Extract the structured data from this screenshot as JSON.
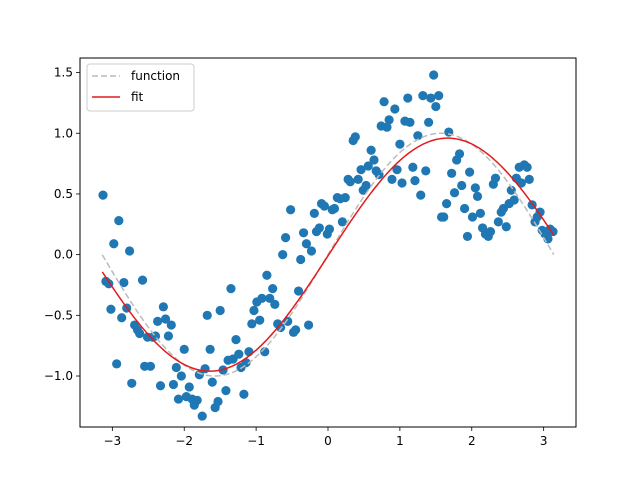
{
  "chart_data": {
    "type": "scatter",
    "xlim": [
      -3.45,
      3.45
    ],
    "ylim": [
      -1.42,
      1.62
    ],
    "x_ticks": [
      -3,
      -2,
      -1,
      0,
      1,
      2,
      3
    ],
    "y_ticks": [
      -1.0,
      -0.5,
      0.0,
      0.5,
      1.0,
      1.5
    ],
    "x_tick_labels": [
      "−3",
      "−2",
      "−1",
      "0",
      "1",
      "2",
      "3"
    ],
    "y_tick_labels": [
      "−1.0",
      "−0.5",
      "0.0",
      "0.5",
      "1.0",
      "1.5"
    ],
    "grid": false,
    "legend": {
      "placement": "top-left",
      "entries": [
        "function",
        "fit"
      ]
    },
    "colors": {
      "points": "#1f77b4",
      "function": "#bbbbbb",
      "fit": "#e41a1c"
    },
    "function": {
      "name": "function",
      "style": "dashed",
      "amplitude": 1.0,
      "frequency": 1.0,
      "phase": 0.0,
      "x_range": [
        -3.14,
        3.14
      ]
    },
    "fit": {
      "name": "fit",
      "style": "solid",
      "amplitude": 0.96,
      "frequency": 0.95,
      "phase": -0.01,
      "x_range": [
        -3.14,
        3.14
      ]
    },
    "points": [
      [
        -3.13,
        0.49
      ],
      [
        -3.09,
        -0.22
      ],
      [
        -3.05,
        -0.24
      ],
      [
        -3.02,
        -0.45
      ],
      [
        -2.98,
        0.09
      ],
      [
        -2.94,
        -0.9
      ],
      [
        -2.91,
        0.28
      ],
      [
        -2.87,
        -0.52
      ],
      [
        -2.84,
        -0.23
      ],
      [
        -2.8,
        -0.44
      ],
      [
        -2.76,
        0.03
      ],
      [
        -2.73,
        -1.06
      ],
      [
        -2.69,
        -0.58
      ],
      [
        -2.65,
        -0.62
      ],
      [
        -2.62,
        -0.65
      ],
      [
        -2.58,
        -0.21
      ],
      [
        -2.55,
        -0.92
      ],
      [
        -2.51,
        -0.68
      ],
      [
        -2.47,
        -0.92
      ],
      [
        -2.44,
        -0.68
      ],
      [
        -2.4,
        -0.67
      ],
      [
        -2.37,
        -0.55
      ],
      [
        -2.33,
        -1.08
      ],
      [
        -2.29,
        -0.43
      ],
      [
        -2.26,
        -0.53
      ],
      [
        -2.22,
        -0.67
      ],
      [
        -2.18,
        -0.58
      ],
      [
        -2.15,
        -1.07
      ],
      [
        -2.11,
        -0.93
      ],
      [
        -2.08,
        -1.19
      ],
      [
        -2.04,
        -1.0
      ],
      [
        -2.0,
        -0.78
      ],
      [
        -1.97,
        -1.17
      ],
      [
        -1.93,
        -1.09
      ],
      [
        -1.89,
        -1.19
      ],
      [
        -1.86,
        -1.24
      ],
      [
        -1.82,
        -1.2
      ],
      [
        -1.79,
        -0.99
      ],
      [
        -1.75,
        -1.33
      ],
      [
        -1.71,
        -0.94
      ],
      [
        -1.68,
        -0.5
      ],
      [
        -1.64,
        -0.78
      ],
      [
        -1.61,
        -1.05
      ],
      [
        -1.57,
        -1.26
      ],
      [
        -1.53,
        -1.21
      ],
      [
        -1.5,
        -0.46
      ],
      [
        -1.46,
        -0.95
      ],
      [
        -1.42,
        -1.12
      ],
      [
        -1.39,
        -0.87
      ],
      [
        -1.35,
        -0.28
      ],
      [
        -1.32,
        -0.86
      ],
      [
        -1.28,
        -0.7
      ],
      [
        -1.24,
        -0.82
      ],
      [
        -1.21,
        -0.93
      ],
      [
        -1.17,
        -1.15
      ],
      [
        -1.14,
        -0.89
      ],
      [
        -1.1,
        -0.8
      ],
      [
        -1.06,
        -0.57
      ],
      [
        -1.03,
        -0.46
      ],
      [
        -0.99,
        -0.39
      ],
      [
        -0.95,
        -0.54
      ],
      [
        -0.92,
        -0.36
      ],
      [
        -0.88,
        -0.8
      ],
      [
        -0.85,
        -0.17
      ],
      [
        -0.81,
        -0.36
      ],
      [
        -0.77,
        -0.28
      ],
      [
        -0.74,
        -0.41
      ],
      [
        -0.7,
        -0.57
      ],
      [
        -0.66,
        -0.6
      ],
      [
        -0.63,
        0.0
      ],
      [
        -0.59,
        0.14
      ],
      [
        -0.56,
        -0.55
      ],
      [
        -0.52,
        0.37
      ],
      [
        -0.48,
        -0.64
      ],
      [
        -0.45,
        -0.62
      ],
      [
        -0.41,
        -0.3
      ],
      [
        -0.38,
        -0.04
      ],
      [
        -0.34,
        0.18
      ],
      [
        -0.3,
        0.09
      ],
      [
        -0.27,
        -0.58
      ],
      [
        -0.23,
        0.03
      ],
      [
        -0.19,
        0.34
      ],
      [
        -0.16,
        0.19
      ],
      [
        -0.12,
        0.22
      ],
      [
        -0.09,
        0.42
      ],
      [
        -0.05,
        0.4
      ],
      [
        -0.01,
        0.17
      ],
      [
        0.02,
        0.21
      ],
      [
        0.06,
        0.37
      ],
      [
        0.09,
        0.38
      ],
      [
        0.13,
        0.47
      ],
      [
        0.17,
        0.46
      ],
      [
        0.2,
        0.27
      ],
      [
        0.24,
        0.47
      ],
      [
        0.28,
        0.62
      ],
      [
        0.31,
        0.6
      ],
      [
        0.35,
        0.94
      ],
      [
        0.38,
        0.97
      ],
      [
        0.42,
        0.62
      ],
      [
        0.46,
        0.7
      ],
      [
        0.49,
        0.53
      ],
      [
        0.53,
        0.57
      ],
      [
        0.56,
        0.73
      ],
      [
        0.6,
        0.86
      ],
      [
        0.64,
        0.78
      ],
      [
        0.67,
        0.69
      ],
      [
        0.71,
        0.66
      ],
      [
        0.74,
        1.06
      ],
      [
        0.78,
        1.26
      ],
      [
        0.82,
        1.05
      ],
      [
        0.85,
        1.11
      ],
      [
        0.89,
        0.62
      ],
      [
        0.93,
        1.2
      ],
      [
        0.96,
        0.7
      ],
      [
        1.0,
        0.91
      ],
      [
        1.03,
        0.59
      ],
      [
        1.07,
        1.1
      ],
      [
        1.11,
        1.29
      ],
      [
        1.14,
        1.09
      ],
      [
        1.18,
        0.72
      ],
      [
        1.21,
        0.61
      ],
      [
        1.25,
        0.98
      ],
      [
        1.29,
        0.49
      ],
      [
        1.32,
        1.31
      ],
      [
        1.36,
        0.69
      ],
      [
        1.4,
        1.09
      ],
      [
        1.43,
        1.29
      ],
      [
        1.47,
        1.48
      ],
      [
        1.5,
        1.22
      ],
      [
        1.54,
        1.31
      ],
      [
        1.58,
        0.31
      ],
      [
        1.61,
        0.31
      ],
      [
        1.65,
        0.42
      ],
      [
        1.68,
        1.01
      ],
      [
        1.72,
        0.67
      ],
      [
        1.76,
        0.51
      ],
      [
        1.79,
        0.78
      ],
      [
        1.83,
        0.83
      ],
      [
        1.86,
        0.57
      ],
      [
        1.9,
        0.38
      ],
      [
        1.94,
        0.15
      ],
      [
        1.97,
        0.68
      ],
      [
        2.01,
        0.31
      ],
      [
        2.05,
        0.55
      ],
      [
        2.08,
        0.48
      ],
      [
        2.12,
        0.34
      ],
      [
        2.15,
        0.22
      ],
      [
        2.19,
        0.17
      ],
      [
        2.23,
        0.15
      ],
      [
        2.26,
        0.19
      ],
      [
        2.3,
        0.58
      ],
      [
        2.33,
        0.63
      ],
      [
        2.37,
        0.27
      ],
      [
        2.41,
        0.35
      ],
      [
        2.44,
        0.38
      ],
      [
        2.48,
        0.23
      ],
      [
        2.52,
        0.42
      ],
      [
        2.55,
        0.53
      ],
      [
        2.59,
        0.45
      ],
      [
        2.62,
        0.63
      ],
      [
        2.66,
        0.72
      ],
      [
        2.69,
        0.59
      ],
      [
        2.73,
        0.74
      ],
      [
        2.77,
        0.72
      ],
      [
        2.8,
        0.62
      ],
      [
        2.84,
        0.41
      ],
      [
        2.88,
        0.27
      ],
      [
        2.91,
        0.31
      ],
      [
        2.95,
        0.35
      ],
      [
        2.98,
        0.2
      ],
      [
        3.02,
        0.17
      ],
      [
        3.06,
        0.13
      ],
      [
        3.09,
        0.21
      ],
      [
        3.13,
        0.19
      ]
    ]
  }
}
